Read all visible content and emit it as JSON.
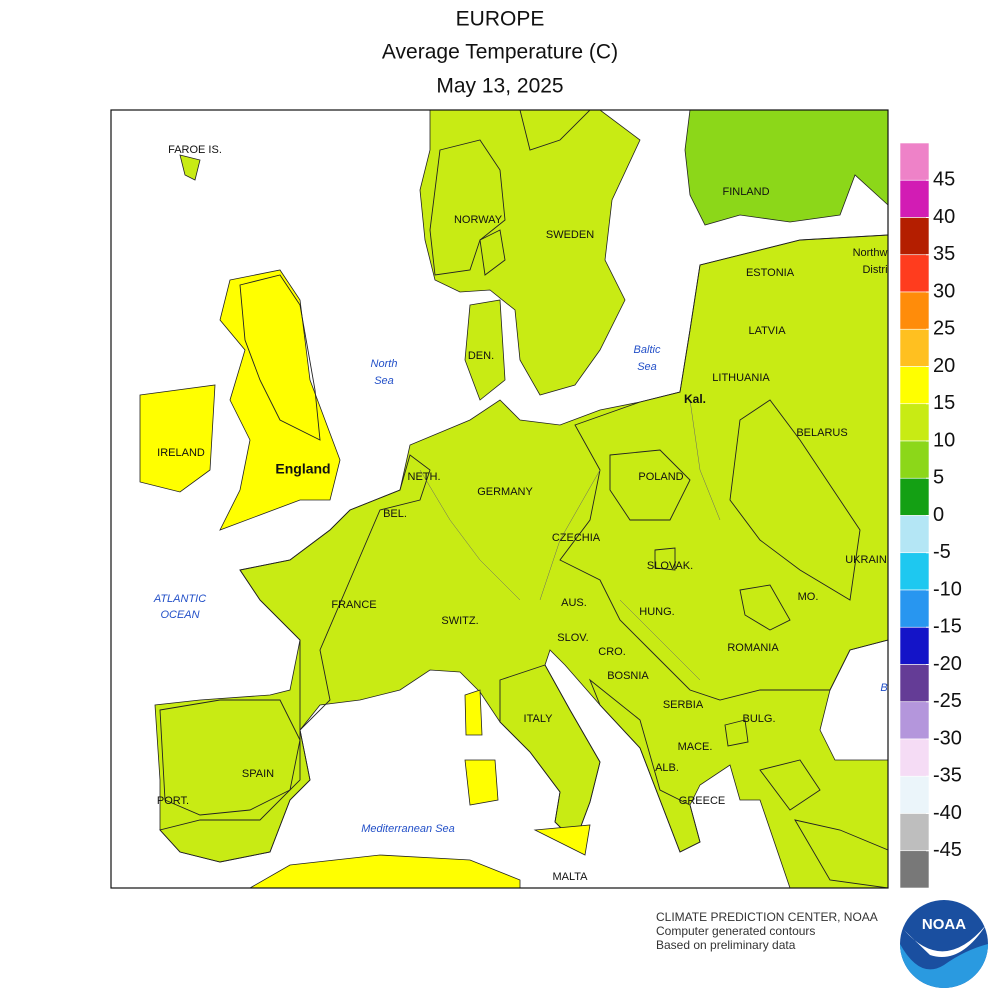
{
  "header": {
    "title": "EUROPE",
    "subtitle": "Average Temperature (C)",
    "date": "May 13, 2025"
  },
  "map": {
    "labels": [
      "FAROE IS.",
      "NORWAY",
      "SWEDEN",
      "FINLAND",
      "ESTONIA",
      "Northw",
      "Distri",
      "LATVIA",
      "LITHUANIA",
      "Kal.",
      "BELARUS",
      "North",
      "Sea",
      "Baltic",
      "Sea",
      "DEN.",
      "IRELAND",
      "England",
      "NETH.",
      "BEL.",
      "GERMANY",
      "POLAND",
      "CZECHIA",
      "SLOVAK.",
      "UKRAIN",
      "ATLANTIC",
      "OCEAN",
      "FRANCE",
      "SWITZ.",
      "AUS.",
      "HUNG.",
      "MO.",
      "ROMANIA",
      "SLOV.",
      "CRO.",
      "BOSNIA",
      "SERBIA",
      "BULG.",
      "ITALY",
      "MACE.",
      "ALB.",
      "GREECE",
      "SPAIN",
      "PORT.",
      "Mediterranean Sea",
      "MALTA",
      "B"
    ]
  },
  "legend": {
    "ticks": [
      45,
      40,
      35,
      30,
      25,
      20,
      15,
      10,
      5,
      0,
      -5,
      -10,
      -15,
      -20,
      -25,
      -30,
      -35,
      -40,
      -45
    ],
    "colors": [
      "#ee82c8",
      "#d21cb4",
      "#b41e00",
      "#ff3c1e",
      "#ff8c0a",
      "#ffc020",
      "#ffff00",
      "#c8eb14",
      "#8cd719",
      "#14a014",
      "#b4e6f5",
      "#1ec8f0",
      "#2896f0",
      "#1414c8",
      "#643c96",
      "#b496dc",
      "#f5dcf5",
      "#ebf5fa",
      "#bebebe",
      "#787878"
    ]
  },
  "credits": {
    "lines": [
      "CLIMATE PREDICTION CENTER, NOAA",
      "Computer generated contours",
      "Based on preliminary data"
    ],
    "logo": "NOAA"
  }
}
